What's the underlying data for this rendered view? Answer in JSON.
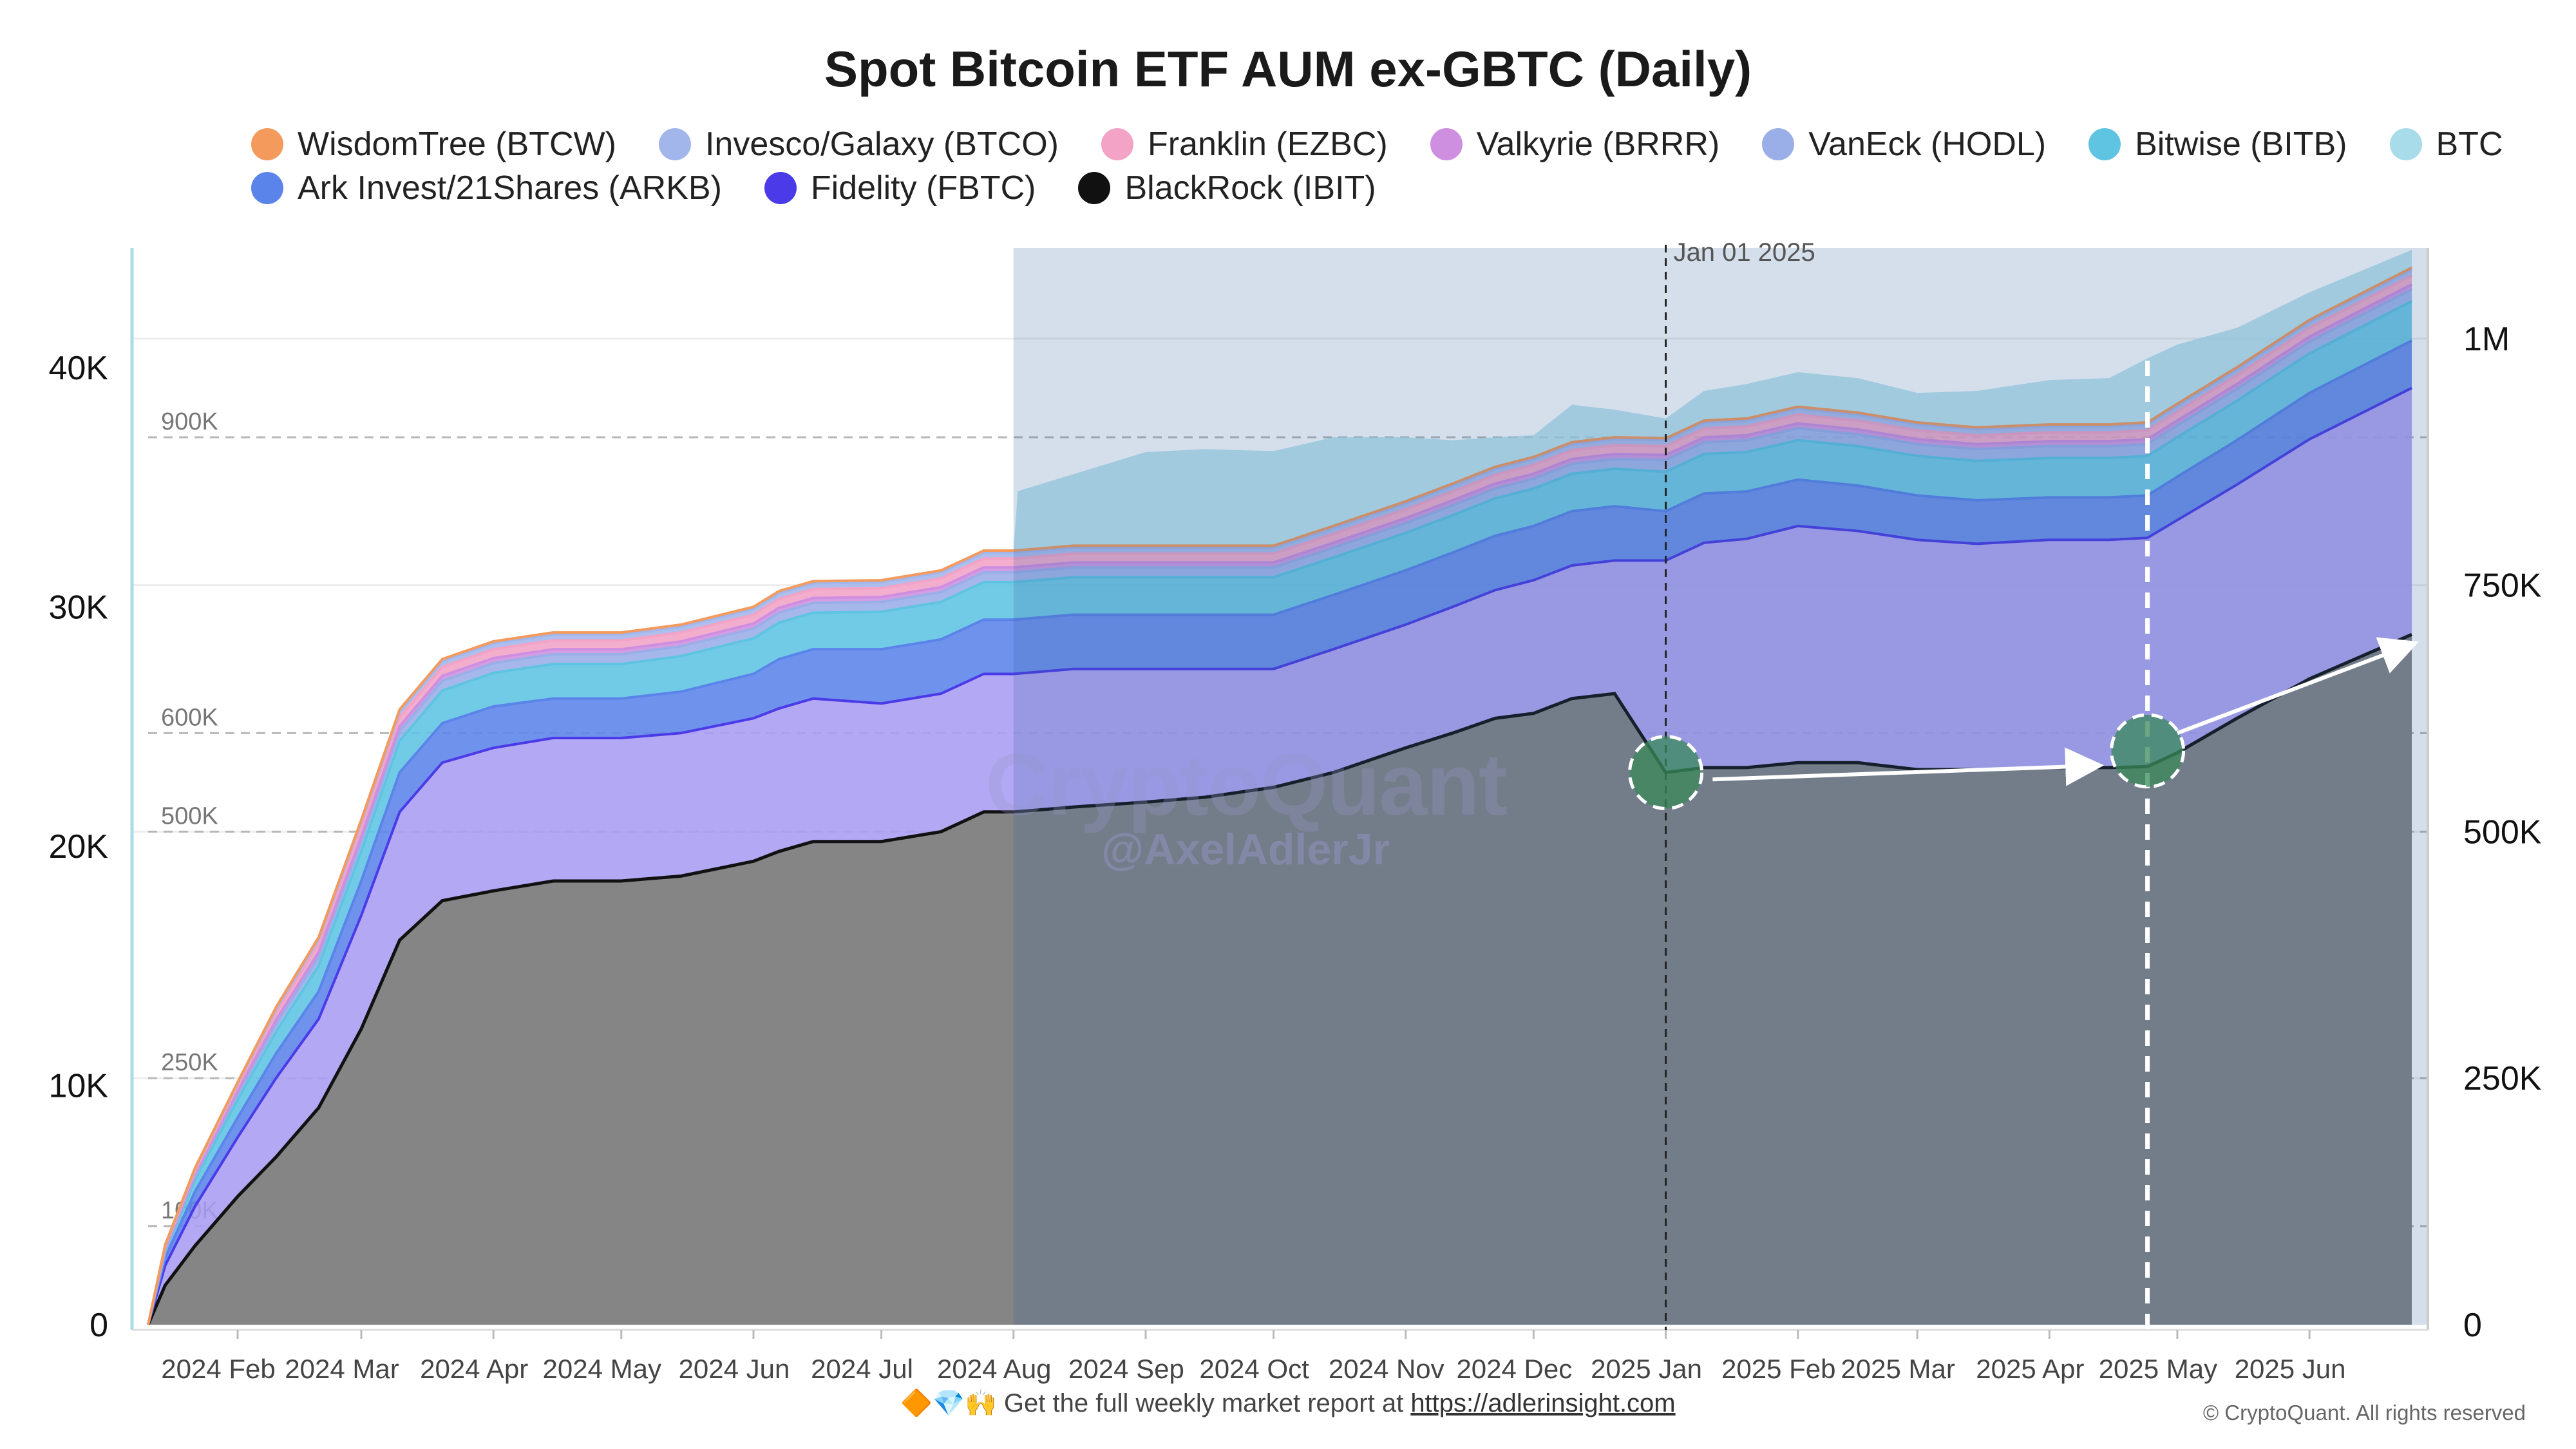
{
  "chart_data": {
    "type": "area",
    "title": "Spot Bitcoin ETF AUM ex-GBTC (Daily)",
    "left_axis": {
      "ticks": [
        "0",
        "10K",
        "20K",
        "30K",
        "40K"
      ],
      "values": [
        0,
        10000,
        20000,
        30000,
        40000
      ],
      "ylim": [
        0,
        45000
      ]
    },
    "right_axis": {
      "ticks": [
        "0",
        "250K",
        "500K",
        "750K",
        "1M"
      ],
      "values": [
        0,
        250000,
        500000,
        750000,
        1000000
      ],
      "ylim": [
        0,
        1092000
      ]
    },
    "inner_guides": [
      {
        "label": "100K",
        "value": 100000
      },
      {
        "label": "250K",
        "value": 250000
      },
      {
        "label": "500K",
        "value": 500000
      },
      {
        "label": "600K",
        "value": 600000
      },
      {
        "label": "900K",
        "value": 900000
      }
    ],
    "x_ticks": [
      "2024 Feb",
      "2024 Mar",
      "2024 Apr",
      "2024 May",
      "2024 Jun",
      "2024 Jul",
      "2024 Aug",
      "2024 Sep",
      "2024 Oct",
      "2024 Nov",
      "2024 Dec",
      "2025 Jan",
      "2025 Feb",
      "2025 Mar",
      "2025 Apr",
      "2025 May",
      "2025 Jun"
    ],
    "x_tick_dates": [
      "2024-02-01",
      "2024-03-01",
      "2024-04-01",
      "2024-05-01",
      "2024-06-01",
      "2024-07-01",
      "2024-08-01",
      "2024-09-01",
      "2024-10-01",
      "2024-11-01",
      "2024-12-01",
      "2025-01-01",
      "2025-02-01",
      "2025-03-01",
      "2025-04-01",
      "2025-05-01",
      "2025-06-01"
    ],
    "x_range": [
      "2024-01-11",
      "2025-06-25"
    ],
    "vline": {
      "label": "Jan 01 2025",
      "date": "2025-01-01"
    },
    "vline2_date": "2025-04-24",
    "shade_end_date": "2024-08-01",
    "dates": [
      "2024-01-11",
      "2024-01-15",
      "2024-01-22",
      "2024-02-01",
      "2024-02-10",
      "2024-02-20",
      "2024-03-01",
      "2024-03-10",
      "2024-03-20",
      "2024-04-01",
      "2024-04-15",
      "2024-05-01",
      "2024-05-15",
      "2024-06-01",
      "2024-06-07",
      "2024-06-15",
      "2024-07-01",
      "2024-07-15",
      "2024-07-25",
      "2024-08-01",
      "2024-08-15",
      "2024-09-01",
      "2024-09-15",
      "2024-10-01",
      "2024-10-15",
      "2024-11-01",
      "2024-11-12",
      "2024-11-22",
      "2024-12-01",
      "2024-12-10",
      "2024-12-20",
      "2025-01-01",
      "2025-01-10",
      "2025-01-20",
      "2025-02-01",
      "2025-02-15",
      "2025-03-01",
      "2025-03-15",
      "2025-04-01",
      "2025-04-15",
      "2025-04-24",
      "2025-05-01",
      "2025-05-15",
      "2025-06-01",
      "2025-06-25"
    ],
    "series": [
      {
        "name": "BlackRock (IBIT)",
        "color": "#111111",
        "values": [
          0,
          40000,
          80000,
          130000,
          170000,
          220000,
          300000,
          390000,
          430000,
          440000,
          450000,
          450000,
          455000,
          470000,
          480000,
          490000,
          490000,
          500000,
          520000,
          520000,
          525000,
          530000,
          535000,
          545000,
          560000,
          585000,
          600000,
          615000,
          620000,
          635000,
          640000,
          560000,
          565000,
          565000,
          570000,
          570000,
          563000,
          563000,
          565000,
          565000,
          566000,
          580000,
          615000,
          655000,
          700000
        ]
      },
      {
        "name": "Fidelity (FBTC)",
        "color": "#4a3ae8",
        "values": [
          0,
          20000,
          40000,
          60000,
          80000,
          90000,
          115000,
          130000,
          140000,
          145000,
          145000,
          145000,
          145000,
          145000,
          145000,
          145000,
          140000,
          140000,
          140000,
          140000,
          140000,
          135000,
          130000,
          120000,
          125000,
          125000,
          128000,
          130000,
          135000,
          135000,
          135000,
          215000,
          228000,
          232000,
          240000,
          235000,
          233000,
          229000,
          231000,
          231000,
          232000,
          236000,
          237000,
          243000,
          250000
        ]
      },
      {
        "name": "Ark Invest/21Shares (ARKB)",
        "color": "#5b84ea",
        "values": [
          0,
          8000,
          15000,
          20000,
          25000,
          28000,
          35000,
          40000,
          40000,
          42000,
          40000,
          40000,
          42000,
          45000,
          50000,
          50000,
          55000,
          55000,
          55000,
          55000,
          55000,
          55000,
          55000,
          55000,
          55000,
          55000,
          55000,
          55000,
          55000,
          55000,
          55000,
          50000,
          50000,
          48000,
          47000,
          46000,
          45000,
          44000,
          43000,
          43000,
          43000,
          44000,
          45000,
          47000,
          48000
        ]
      },
      {
        "name": "Bitwise (BITB)",
        "color": "#5ec4e2",
        "values": [
          0,
          6000,
          12000,
          18000,
          22000,
          26000,
          30000,
          32000,
          33000,
          34000,
          35000,
          35000,
          36000,
          36000,
          37000,
          37000,
          38000,
          38000,
          38000,
          38000,
          38000,
          38000,
          38000,
          38000,
          38000,
          38000,
          38000,
          38000,
          38000,
          38000,
          38000,
          40000,
          40000,
          40000,
          40000,
          40000,
          40000,
          40000,
          40000,
          40000,
          40000,
          40000,
          40000,
          40000,
          40000
        ]
      },
      {
        "name": "VanEck (HODL)",
        "color": "#9aaee8",
        "values": [
          0,
          2000,
          4000,
          6000,
          8000,
          9000,
          10000,
          10000,
          10000,
          10000,
          10000,
          10000,
          10000,
          10000,
          10000,
          10000,
          10000,
          10000,
          10000,
          10000,
          10000,
          10000,
          10000,
          10000,
          10000,
          10000,
          10000,
          10000,
          10000,
          10000,
          10000,
          12000,
          12000,
          12000,
          12000,
          12000,
          12000,
          12000,
          12000,
          12000,
          12000,
          12000,
          12000,
          12000,
          12000
        ]
      },
      {
        "name": "Valkyrie (BRRR)",
        "color": "#cf8fe0",
        "values": [
          0,
          1000,
          2000,
          3000,
          4000,
          5000,
          5000,
          5000,
          5000,
          5000,
          5000,
          5000,
          5000,
          5000,
          5000,
          5000,
          5000,
          5000,
          5000,
          5000,
          5000,
          5000,
          5000,
          5000,
          5000,
          5000,
          5000,
          5000,
          5000,
          5000,
          5000,
          5000,
          5000,
          5000,
          5000,
          5000,
          5000,
          5000,
          5000,
          5000,
          5000,
          5000,
          5000,
          5000,
          5000
        ]
      },
      {
        "name": "Franklin (EZBC)",
        "color": "#f2a3c6",
        "values": [
          0,
          2000,
          3000,
          5000,
          7000,
          8000,
          9000,
          9000,
          9000,
          9000,
          9000,
          9000,
          9000,
          9000,
          9000,
          9000,
          9000,
          9000,
          9000,
          9000,
          9000,
          9000,
          9000,
          9000,
          9000,
          9000,
          9000,
          9000,
          9000,
          9000,
          9000,
          9000,
          9000,
          9000,
          9000,
          9000,
          9000,
          9000,
          9000,
          9000,
          9000,
          9000,
          9000,
          9000,
          9000
        ]
      },
      {
        "name": "Invesco/Galaxy (BTCO)",
        "color": "#a3b6ec",
        "values": [
          0,
          1000,
          2000,
          3000,
          4000,
          5000,
          6000,
          6000,
          6000,
          6000,
          6000,
          6000,
          6000,
          6000,
          6000,
          6000,
          6000,
          6000,
          6000,
          6000,
          6000,
          6000,
          6000,
          6000,
          6000,
          6000,
          6000,
          6000,
          6000,
          6000,
          6000,
          6000,
          6000,
          6000,
          6000,
          6000,
          6000,
          6000,
          6000,
          6000,
          6000,
          6000,
          6000,
          6000,
          6000
        ]
      },
      {
        "name": "WisdomTree (BTCW)",
        "color": "#f39a5c",
        "values": [
          0,
          1000,
          1000,
          1000,
          2000,
          2000,
          2000,
          2000,
          2000,
          2000,
          2000,
          2000,
          2000,
          2000,
          2000,
          2000,
          2000,
          2000,
          2000,
          2000,
          2000,
          2000,
          2000,
          2000,
          2000,
          2000,
          2000,
          2000,
          2000,
          2000,
          2000,
          2000,
          2000,
          2000,
          2000,
          2000,
          2000,
          2000,
          2000,
          2000,
          2000,
          2000,
          2000,
          2000,
          2000
        ]
      }
    ],
    "btc_extra": {
      "name": "BTC",
      "color": "#a8dcea",
      "dates": [
        "2024-08-01",
        "2024-08-02",
        "2024-09-01",
        "2024-09-15",
        "2024-10-01",
        "2024-10-15",
        "2024-11-01",
        "2024-11-12",
        "2024-11-22",
        "2024-12-01",
        "2024-12-10",
        "2024-12-20",
        "2025-01-01",
        "2025-01-10",
        "2025-01-20",
        "2025-02-01",
        "2025-02-15",
        "2025-03-01",
        "2025-03-15",
        "2025-04-01",
        "2025-04-15",
        "2025-04-24",
        "2025-05-01",
        "2025-05-15",
        "2025-06-01",
        "2025-06-25"
      ],
      "values": [
        0,
        60000,
        95000,
        98000,
        96000,
        90000,
        65000,
        44000,
        30000,
        22000,
        38000,
        28000,
        20000,
        30000,
        35000,
        35000,
        35000,
        30000,
        37000,
        45000,
        47000,
        65000,
        60000,
        40000,
        28000,
        18000
      ]
    },
    "legend_order": [
      "WisdomTree (BTCW)",
      "Invesco/Galaxy (BTCO)",
      "Franklin (EZBC)",
      "Valkyrie (BRRR)",
      "VanEck (HODL)",
      "Bitwise (BITB)",
      "BTC",
      "Ark Invest/21Shares (ARKB)",
      "Fidelity (FBTC)",
      "BlackRock (IBIT)"
    ],
    "annotations": {
      "circles": [
        {
          "date": "2025-01-01",
          "value": 560000
        },
        {
          "date": "2025-04-24",
          "value": 582000
        }
      ],
      "arrows": [
        {
          "from_date": "2025-01-12",
          "from_value": 553000,
          "to_date": "2025-04-12",
          "to_value": 567000
        },
        {
          "from_date": "2025-05-01",
          "from_value": 600000,
          "to_date": "2025-06-25",
          "to_value": 690000
        }
      ]
    },
    "grid": true,
    "legend_position": "top"
  },
  "watermark": {
    "line1": "CryptoQuant",
    "line2": "@AxelAdlerJr"
  },
  "footer": {
    "emoji": "🔶💎🙌",
    "text": "Get the full weekly market report at",
    "link": "https://adlerinsight.com"
  },
  "copyright": "© CryptoQuant. All rights reserved"
}
